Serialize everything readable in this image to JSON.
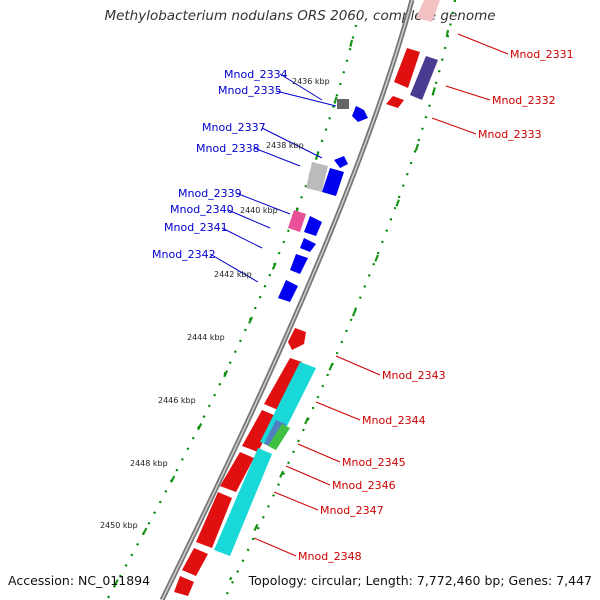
{
  "title": "Methylobacterium nodulans ORS 2060, complete genome",
  "footer": {
    "accession": "Accession: NC_011894",
    "topology": "Topology: circular; Length: 7,772,460 bp; Genes: 7,447"
  },
  "colors": {
    "forward_label": "#cc0000",
    "reverse_label": "#0000cc",
    "backbone": "#888888",
    "tick": "#008800"
  },
  "kbp_labels": [
    "2436 kbp",
    "2438 kbp",
    "2440 kbp",
    "2442 kbp",
    "2444 kbp",
    "2446 kbp",
    "2448 kbp",
    "2450 kbp"
  ],
  "genes": [
    {
      "name": "Mnod_2331",
      "strand": "forward"
    },
    {
      "name": "Mnod_2332",
      "strand": "forward"
    },
    {
      "name": "Mnod_2333",
      "strand": "forward"
    },
    {
      "name": "Mnod_2334",
      "strand": "reverse"
    },
    {
      "name": "Mnod_2335",
      "strand": "reverse"
    },
    {
      "name": "Mnod_2337",
      "strand": "reverse"
    },
    {
      "name": "Mnod_2338",
      "strand": "reverse"
    },
    {
      "name": "Mnod_2339",
      "strand": "reverse"
    },
    {
      "name": "Mnod_2340",
      "strand": "reverse"
    },
    {
      "name": "Mnod_2341",
      "strand": "reverse"
    },
    {
      "name": "Mnod_2342",
      "strand": "reverse"
    },
    {
      "name": "Mnod_2343",
      "strand": "forward"
    },
    {
      "name": "Mnod_2344",
      "strand": "forward"
    },
    {
      "name": "Mnod_2345",
      "strand": "forward"
    },
    {
      "name": "Mnod_2346",
      "strand": "forward"
    },
    {
      "name": "Mnod_2347",
      "strand": "forward"
    },
    {
      "name": "Mnod_2348",
      "strand": "forward"
    }
  ]
}
